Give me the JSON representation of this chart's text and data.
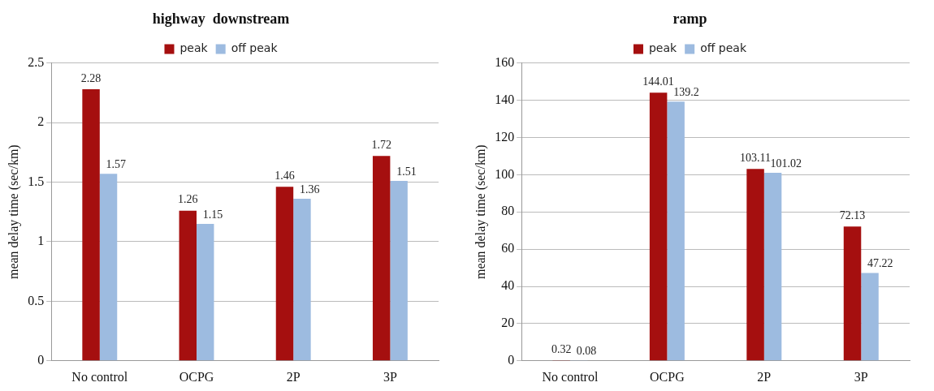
{
  "chart_data": [
    {
      "type": "bar",
      "title": "highway  downstream",
      "ylabel": "mean delay time (sec/km)",
      "categories": [
        "No control",
        "OCPG",
        "2P",
        "3P"
      ],
      "series": [
        {
          "name": "peak",
          "color": "#a50f0f",
          "values": [
            2.28,
            1.26,
            1.46,
            1.72
          ]
        },
        {
          "name": "off peak",
          "color": "#9dbbe0",
          "values": [
            1.57,
            1.15,
            1.36,
            1.51
          ]
        }
      ],
      "ylim": [
        0,
        2.5
      ],
      "yticks": [
        0,
        0.5,
        1,
        1.5,
        2,
        2.5
      ],
      "grid": "y",
      "legend": "top",
      "data_labels": true
    },
    {
      "type": "bar",
      "title": "ramp",
      "ylabel": "mean delay time (sec/km)",
      "categories": [
        "No control",
        "OCPG",
        "2P",
        "3P"
      ],
      "series": [
        {
          "name": "peak",
          "color": "#a50f0f",
          "values": [
            0.32,
            144.01,
            103.11,
            72.13
          ]
        },
        {
          "name": "off peak",
          "color": "#9dbbe0",
          "values": [
            0.08,
            139.2,
            101.02,
            47.22
          ]
        }
      ],
      "ylim": [
        0,
        160
      ],
      "yticks": [
        0,
        20,
        40,
        60,
        80,
        100,
        120,
        140,
        160
      ],
      "grid": "y",
      "legend": "top",
      "data_labels": true
    }
  ]
}
